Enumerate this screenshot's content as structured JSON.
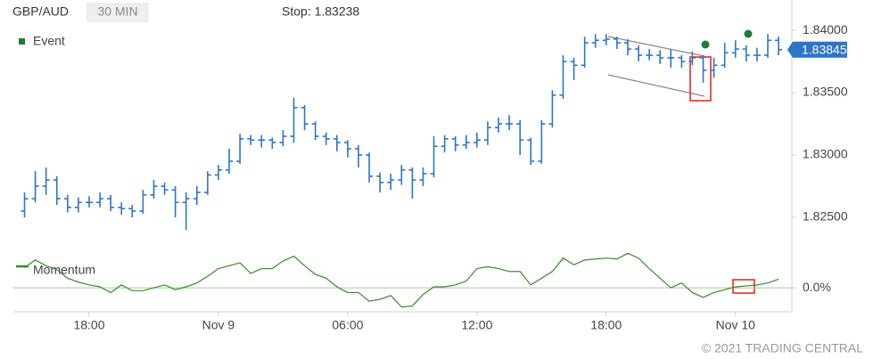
{
  "chart_data": [
    {
      "type": "ohlc",
      "title": "GBP/AUD",
      "subtitle": "30 MIN",
      "annotation": "Stop: 1.83238",
      "legend_label": "Event",
      "legend_color": "#1e7b3a",
      "color": "#2e75c7",
      "last_price": 1.83845,
      "ylim": [
        1.8235,
        1.84129
      ],
      "yticks": [
        {
          "value": 1.825,
          "label": "1.82500"
        },
        {
          "value": 1.83,
          "label": "1.83000"
        },
        {
          "value": 1.835,
          "label": "1.83500"
        },
        {
          "value": 1.84,
          "label": "1.84000"
        }
      ],
      "open": [
        1.8255,
        1.8265,
        1.8275,
        1.828,
        1.8265,
        1.8258,
        1.8262,
        1.8262,
        1.8265,
        1.8258,
        1.8257,
        1.8255,
        1.8268,
        1.8275,
        1.8272,
        1.8262,
        1.8265,
        1.827,
        1.8284,
        1.8288,
        1.8295,
        1.8313,
        1.8312,
        1.8312,
        1.831,
        1.8315,
        1.8338,
        1.8325,
        1.8315,
        1.8313,
        1.831,
        1.8305,
        1.83,
        1.8283,
        1.8278,
        1.828,
        1.8288,
        1.828,
        1.8285,
        1.8307,
        1.8313,
        1.8308,
        1.831,
        1.8312,
        1.8322,
        1.8325,
        1.8325,
        1.8312,
        1.8295,
        1.8325,
        1.8348,
        1.8375,
        1.8372,
        1.839,
        1.8392,
        1.8393,
        1.839,
        1.8385,
        1.838,
        1.838,
        1.8378,
        1.8378,
        1.8375,
        1.8378,
        1.8368,
        1.8372,
        1.8382,
        1.8385,
        1.838,
        1.838,
        1.8392
      ],
      "high": [
        1.827,
        1.8287,
        1.829,
        1.8283,
        1.8268,
        1.8266,
        1.8267,
        1.827,
        1.8268,
        1.8262,
        1.826,
        1.8272,
        1.828,
        1.8278,
        1.8275,
        1.827,
        1.8275,
        1.8287,
        1.8292,
        1.8305,
        1.8317,
        1.8316,
        1.8316,
        1.8314,
        1.832,
        1.8346,
        1.834,
        1.8327,
        1.8318,
        1.8316,
        1.8312,
        1.8308,
        1.8302,
        1.8286,
        1.8285,
        1.8292,
        1.829,
        1.829,
        1.8315,
        1.8316,
        1.8315,
        1.8316,
        1.8318,
        1.8327,
        1.833,
        1.8332,
        1.8328,
        1.8314,
        1.8328,
        1.8352,
        1.838,
        1.8378,
        1.8395,
        1.8397,
        1.8397,
        1.8395,
        1.8393,
        1.8388,
        1.8385,
        1.8384,
        1.8385,
        1.838,
        1.8383,
        1.838,
        1.8378,
        1.839,
        1.8392,
        1.8388,
        1.8386,
        1.8397,
        1.8395
      ],
      "low": [
        1.825,
        1.8262,
        1.8268,
        1.826,
        1.8254,
        1.8254,
        1.8258,
        1.8258,
        1.8255,
        1.8252,
        1.825,
        1.8253,
        1.8265,
        1.8268,
        1.825,
        1.824,
        1.826,
        1.8268,
        1.828,
        1.8285,
        1.8293,
        1.8308,
        1.8306,
        1.8305,
        1.8307,
        1.831,
        1.832,
        1.8312,
        1.8308,
        1.8303,
        1.8298,
        1.829,
        1.8278,
        1.827,
        1.8272,
        1.8276,
        1.8265,
        1.8275,
        1.8282,
        1.8302,
        1.8303,
        1.8305,
        1.8306,
        1.8308,
        1.8318,
        1.832,
        1.83,
        1.8292,
        1.8293,
        1.8322,
        1.8345,
        1.836,
        1.837,
        1.8386,
        1.8388,
        1.8385,
        1.838,
        1.8375,
        1.8376,
        1.8373,
        1.837,
        1.837,
        1.8372,
        1.8358,
        1.8362,
        1.837,
        1.8378,
        1.8375,
        1.8375,
        1.8378,
        1.838
      ],
      "close": [
        1.8265,
        1.8275,
        1.828,
        1.8265,
        1.8258,
        1.8262,
        1.8262,
        1.8265,
        1.8258,
        1.8257,
        1.8255,
        1.8268,
        1.8275,
        1.8272,
        1.8262,
        1.8265,
        1.827,
        1.8284,
        1.8288,
        1.8295,
        1.8313,
        1.8312,
        1.8312,
        1.831,
        1.8315,
        1.8338,
        1.8325,
        1.8315,
        1.8313,
        1.831,
        1.8305,
        1.83,
        1.8283,
        1.8278,
        1.828,
        1.8288,
        1.828,
        1.8285,
        1.8307,
        1.8313,
        1.8308,
        1.831,
        1.8312,
        1.8322,
        1.8325,
        1.8325,
        1.8312,
        1.8295,
        1.8325,
        1.8348,
        1.8375,
        1.8372,
        1.839,
        1.8392,
        1.8393,
        1.839,
        1.8385,
        1.838,
        1.838,
        1.8378,
        1.8378,
        1.8375,
        1.8378,
        1.8368,
        1.8372,
        1.8382,
        1.8385,
        1.838,
        1.838,
        1.8392,
        1.83845
      ]
    },
    {
      "type": "line",
      "categories": [
        null,
        null,
        null,
        null,
        null,
        null,
        "18:00",
        null,
        null,
        null,
        null,
        null,
        null,
        null,
        null,
        null,
        null,
        null,
        "Nov 9",
        null,
        null,
        null,
        null,
        null,
        null,
        null,
        null,
        null,
        null,
        null,
        "06:00",
        null,
        null,
        null,
        null,
        null,
        null,
        null,
        null,
        null,
        null,
        null,
        "12:00",
        null,
        null,
        null,
        null,
        null,
        null,
        null,
        null,
        null,
        null,
        null,
        "18:00",
        null,
        null,
        null,
        null,
        null,
        null,
        null,
        null,
        null,
        null,
        null,
        "Nov 10",
        null,
        null,
        null,
        null
      ],
      "series": [
        {
          "name": "Momentum",
          "color": "#3a8a2e",
          "values": [
            0.21,
            0.29,
            0.23,
            0.19,
            0.1,
            0.06,
            0.03,
            0.01,
            -0.05,
            0.03,
            -0.03,
            -0.03,
            0.0,
            0.03,
            -0.02,
            0.01,
            0.05,
            0.12,
            0.2,
            0.23,
            0.26,
            0.15,
            0.2,
            0.2,
            0.28,
            0.33,
            0.23,
            0.14,
            0.1,
            0.01,
            -0.05,
            -0.05,
            -0.14,
            -0.12,
            -0.08,
            -0.2,
            -0.19,
            -0.07,
            0.01,
            0.01,
            0.03,
            0.07,
            0.2,
            0.22,
            0.2,
            0.17,
            0.17,
            0.03,
            0.1,
            0.17,
            0.31,
            0.24,
            0.29,
            0.3,
            0.31,
            0.3,
            0.36,
            0.31,
            0.2,
            0.1,
            0.0,
            0.05,
            -0.05,
            -0.1,
            -0.05,
            -0.02,
            0.01,
            0.02,
            0.03,
            0.05,
            0.09
          ]
        }
      ],
      "ylim": [
        -0.25,
        0.4
      ],
      "yticks": [
        {
          "value": 0,
          "label": "0.0%"
        }
      ]
    }
  ],
  "footer": "© 2021 TRADING CENTRAL"
}
